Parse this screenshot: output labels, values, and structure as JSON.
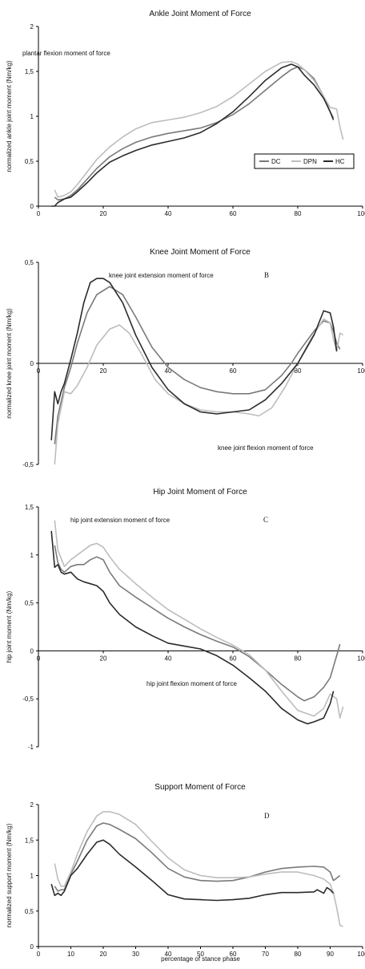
{
  "chart_data": [
    {
      "type": "line",
      "title": "Ankle Joint Moment of Force",
      "panel_letter": "",
      "ylabel": "normalized ankle joint moment (Nm/kg)",
      "xlabel": "",
      "xlim": [
        0,
        100
      ],
      "ylim": [
        0,
        2
      ],
      "x_ticks": [
        "0",
        "20",
        "40",
        "60",
        "80",
        "100"
      ],
      "y_ticks": [
        "0",
        "0,5",
        "1",
        "1,5",
        "2"
      ],
      "legend": {
        "placement": "right",
        "entries": [
          "DC",
          "DPN",
          "HC"
        ]
      },
      "annotations": [
        "plantar flexion moment of force"
      ],
      "colors": {
        "DC": "#7a7a7a",
        "DPN": "#bdbdbd",
        "HC": "#2b2b2b"
      },
      "series": [
        {
          "name": "DC",
          "x": [
            5,
            6,
            8,
            10,
            12,
            15,
            18,
            22,
            26,
            30,
            35,
            40,
            45,
            50,
            55,
            60,
            65,
            70,
            75,
            78,
            80,
            82,
            85,
            88,
            90,
            91
          ],
          "y": [
            0.1,
            0.07,
            0.08,
            0.12,
            0.18,
            0.3,
            0.42,
            0.55,
            0.64,
            0.71,
            0.77,
            0.81,
            0.84,
            0.87,
            0.93,
            1.02,
            1.14,
            1.29,
            1.44,
            1.52,
            1.55,
            1.52,
            1.42,
            1.22,
            1.05,
            0.98
          ]
        },
        {
          "name": "DPN",
          "x": [
            5,
            6,
            8,
            10,
            12,
            15,
            18,
            22,
            26,
            30,
            35,
            40,
            45,
            50,
            55,
            60,
            65,
            70,
            75,
            78,
            80,
            82,
            85,
            88,
            90,
            92,
            93,
            94
          ],
          "y": [
            0.18,
            0.1,
            0.12,
            0.16,
            0.24,
            0.38,
            0.52,
            0.66,
            0.77,
            0.86,
            0.93,
            0.96,
            0.99,
            1.04,
            1.11,
            1.22,
            1.36,
            1.5,
            1.6,
            1.61,
            1.58,
            1.52,
            1.4,
            1.22,
            1.1,
            1.08,
            0.88,
            0.74
          ]
        },
        {
          "name": "HC",
          "x": [
            4,
            5,
            6,
            8,
            10,
            12,
            15,
            18,
            22,
            26,
            30,
            35,
            40,
            45,
            50,
            55,
            60,
            65,
            70,
            75,
            78,
            80,
            82,
            85,
            88,
            90,
            91
          ],
          "y": [
            0.0,
            0.0,
            0.04,
            0.08,
            0.1,
            0.16,
            0.26,
            0.37,
            0.49,
            0.56,
            0.62,
            0.68,
            0.72,
            0.76,
            0.82,
            0.92,
            1.05,
            1.22,
            1.4,
            1.54,
            1.58,
            1.55,
            1.46,
            1.35,
            1.2,
            1.05,
            0.96
          ]
        }
      ]
    },
    {
      "type": "line",
      "title": "Knee Joint Moment of Force",
      "panel_letter": "B",
      "ylabel": "normalized knee joint moment (Nm/kg)",
      "xlabel": "",
      "xlim": [
        0,
        100
      ],
      "ylim": [
        -0.5,
        0.5
      ],
      "x_ticks": [
        "0",
        "20",
        "40",
        "60",
        "80",
        "100"
      ],
      "y_ticks": [
        "-0,5",
        "0",
        "0,5"
      ],
      "annotations": [
        "knee joint extension moment of force",
        "knee joint flexion moment of force"
      ],
      "colors": {
        "DC": "#7a7a7a",
        "DPN": "#bdbdbd",
        "HC": "#2b2b2b"
      },
      "series": [
        {
          "name": "DC",
          "x": [
            5,
            6,
            8,
            10,
            12,
            15,
            18,
            22,
            26,
            30,
            35,
            40,
            45,
            50,
            55,
            60,
            65,
            70,
            75,
            78,
            80,
            85,
            88,
            90,
            91,
            92,
            93
          ],
          "y": [
            -0.4,
            -0.26,
            -0.12,
            -0.02,
            0.1,
            0.25,
            0.34,
            0.38,
            0.34,
            0.23,
            0.08,
            -0.02,
            -0.08,
            -0.12,
            -0.14,
            -0.15,
            -0.15,
            -0.13,
            -0.06,
            0.0,
            0.05,
            0.16,
            0.21,
            0.2,
            0.16,
            0.1,
            0.07
          ]
        },
        {
          "name": "DPN",
          "x": [
            5,
            6,
            8,
            10,
            12,
            15,
            18,
            22,
            25,
            28,
            32,
            36,
            40,
            45,
            50,
            55,
            60,
            65,
            68,
            72,
            76,
            80,
            84,
            88,
            90,
            91,
            92,
            93,
            94
          ],
          "y": [
            -0.5,
            -0.3,
            -0.14,
            -0.15,
            -0.11,
            -0.02,
            0.09,
            0.17,
            0.19,
            0.15,
            0.04,
            -0.08,
            -0.15,
            -0.2,
            -0.23,
            -0.24,
            -0.24,
            -0.25,
            -0.26,
            -0.22,
            -0.12,
            0.0,
            0.12,
            0.22,
            0.2,
            0.12,
            0.06,
            0.15,
            0.14
          ]
        },
        {
          "name": "HC",
          "x": [
            4,
            5,
            6,
            7,
            8,
            10,
            12,
            14,
            16,
            18,
            20,
            22,
            26,
            30,
            35,
            40,
            45,
            50,
            55,
            60,
            65,
            70,
            75,
            80,
            85,
            88,
            90,
            91,
            92
          ],
          "y": [
            -0.38,
            -0.14,
            -0.2,
            -0.14,
            -0.1,
            0.02,
            0.15,
            0.3,
            0.4,
            0.42,
            0.42,
            0.4,
            0.3,
            0.14,
            -0.02,
            -0.13,
            -0.2,
            -0.24,
            -0.25,
            -0.24,
            -0.23,
            -0.18,
            -0.1,
            0.0,
            0.14,
            0.26,
            0.25,
            0.18,
            0.06
          ]
        }
      ]
    },
    {
      "type": "line",
      "title": "Hip Joint Moment of Force",
      "panel_letter": "C",
      "ylabel": "hip joint moment (Nm/kg)",
      "xlabel": "",
      "xlim": [
        0,
        100
      ],
      "ylim": [
        -1,
        1.5
      ],
      "x_ticks": [
        "0",
        "20",
        "40",
        "60",
        "80",
        "100"
      ],
      "y_ticks": [
        "-1",
        "-0,5",
        "0",
        "0,5",
        "1",
        "1,5"
      ],
      "annotations": [
        "hip joint extension moment of force",
        "hip joint flexion moment of force"
      ],
      "colors": {
        "DC": "#7a7a7a",
        "DPN": "#bdbdbd",
        "HC": "#2b2b2b"
      },
      "series": [
        {
          "name": "DC",
          "x": [
            5,
            6,
            7,
            8,
            10,
            12,
            14,
            16,
            18,
            20,
            22,
            25,
            30,
            35,
            40,
            45,
            50,
            55,
            60,
            65,
            70,
            75,
            80,
            82,
            85,
            88,
            90,
            92,
            93
          ],
          "y": [
            1.1,
            0.92,
            0.85,
            0.82,
            0.88,
            0.9,
            0.9,
            0.95,
            0.98,
            0.95,
            0.82,
            0.68,
            0.56,
            0.45,
            0.34,
            0.25,
            0.17,
            0.1,
            0.04,
            -0.06,
            -0.2,
            -0.35,
            -0.48,
            -0.52,
            -0.48,
            -0.38,
            -0.28,
            -0.05,
            0.07
          ]
        },
        {
          "name": "DPN",
          "x": [
            5,
            6,
            8,
            10,
            12,
            14,
            16,
            18,
            20,
            22,
            25,
            30,
            35,
            40,
            45,
            50,
            55,
            60,
            65,
            70,
            75,
            80,
            85,
            88,
            90,
            92,
            93,
            94
          ],
          "y": [
            1.36,
            1.05,
            0.88,
            0.95,
            1.0,
            1.05,
            1.1,
            1.12,
            1.08,
            0.98,
            0.85,
            0.7,
            0.56,
            0.43,
            0.33,
            0.23,
            0.14,
            0.06,
            -0.04,
            -0.2,
            -0.42,
            -0.62,
            -0.68,
            -0.6,
            -0.45,
            -0.5,
            -0.7,
            -0.58
          ]
        },
        {
          "name": "HC",
          "x": [
            4,
            5,
            6,
            7,
            8,
            10,
            12,
            14,
            16,
            18,
            20,
            22,
            25,
            30,
            35,
            40,
            45,
            50,
            55,
            60,
            65,
            70,
            75,
            80,
            83,
            85,
            88,
            90,
            91
          ],
          "y": [
            1.25,
            0.87,
            0.9,
            0.82,
            0.8,
            0.82,
            0.75,
            0.72,
            0.7,
            0.68,
            0.62,
            0.5,
            0.38,
            0.25,
            0.16,
            0.08,
            0.05,
            0.02,
            -0.05,
            -0.15,
            -0.28,
            -0.42,
            -0.6,
            -0.72,
            -0.76,
            -0.74,
            -0.7,
            -0.55,
            -0.42
          ]
        }
      ]
    },
    {
      "type": "line",
      "title": "Support Moment of Force",
      "panel_letter": "D",
      "ylabel": "normalized support moment (Nm/kg)",
      "xlabel": "percentage of stance phase",
      "xlim": [
        0,
        100
      ],
      "ylim": [
        0,
        2
      ],
      "x_ticks": [
        "0",
        "10",
        "20",
        "30",
        "40",
        "50",
        "60",
        "70",
        "80",
        "90",
        "100"
      ],
      "y_ticks": [
        "0",
        "0,5",
        "1",
        "1,5",
        "2"
      ],
      "colors": {
        "DC": "#7a7a7a",
        "DPN": "#bdbdbd",
        "HC": "#2b2b2b"
      },
      "series": [
        {
          "name": "DC",
          "x": [
            5,
            6,
            7,
            8,
            10,
            12,
            15,
            18,
            20,
            22,
            25,
            30,
            35,
            40,
            45,
            50,
            55,
            60,
            65,
            70,
            75,
            80,
            85,
            88,
            90,
            91,
            93
          ],
          "y": [
            0.85,
            0.78,
            0.8,
            0.8,
            1.02,
            1.2,
            1.5,
            1.7,
            1.74,
            1.72,
            1.65,
            1.52,
            1.32,
            1.1,
            0.98,
            0.93,
            0.92,
            0.93,
            0.98,
            1.05,
            1.1,
            1.12,
            1.13,
            1.12,
            1.05,
            0.93,
            1.0
          ]
        },
        {
          "name": "DPN",
          "x": [
            5,
            6,
            7,
            8,
            10,
            12,
            15,
            18,
            20,
            22,
            25,
            30,
            35,
            40,
            45,
            50,
            55,
            60,
            65,
            70,
            75,
            80,
            85,
            88,
            90,
            91,
            92,
            93,
            94
          ],
          "y": [
            1.17,
            0.95,
            0.85,
            0.85,
            1.05,
            1.3,
            1.62,
            1.84,
            1.9,
            1.9,
            1.86,
            1.72,
            1.48,
            1.25,
            1.08,
            1.0,
            0.97,
            0.97,
            0.98,
            1.02,
            1.05,
            1.05,
            1.0,
            0.95,
            0.88,
            0.75,
            0.55,
            0.3,
            0.28
          ]
        },
        {
          "name": "HC",
          "x": [
            4,
            5,
            6,
            7,
            8,
            10,
            12,
            15,
            18,
            20,
            22,
            25,
            30,
            35,
            40,
            45,
            50,
            55,
            60,
            65,
            70,
            75,
            80,
            85,
            86,
            88,
            89,
            90,
            91
          ],
          "y": [
            0.88,
            0.72,
            0.75,
            0.72,
            0.78,
            1.0,
            1.1,
            1.3,
            1.47,
            1.5,
            1.44,
            1.3,
            1.12,
            0.93,
            0.73,
            0.67,
            0.66,
            0.65,
            0.66,
            0.68,
            0.73,
            0.76,
            0.76,
            0.77,
            0.8,
            0.75,
            0.83,
            0.8,
            0.75
          ]
        }
      ]
    }
  ]
}
